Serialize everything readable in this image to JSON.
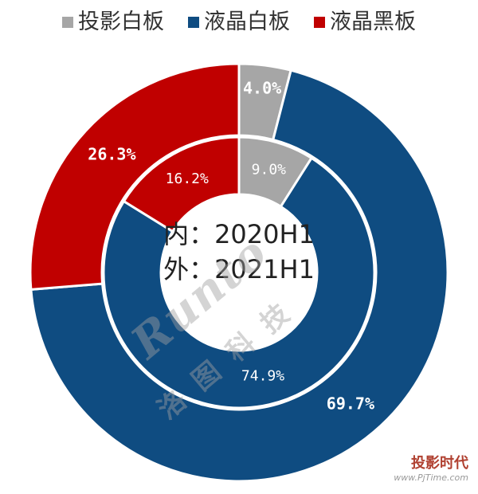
{
  "chart_data": [
    {
      "type": "pie",
      "ring": "inner",
      "categories": [
        "投影白板",
        "液晶白板",
        "液晶黑板"
      ],
      "values": [
        9.0,
        74.9,
        16.2
      ],
      "labels": [
        "9.0%",
        "74.9%",
        "16.2%"
      ]
    },
    {
      "type": "pie",
      "ring": "outer",
      "categories": [
        "投影白板",
        "液晶白板",
        "液晶黑板"
      ],
      "values": [
        4.0,
        69.7,
        26.3
      ],
      "labels": [
        "4.0%",
        "69.7%",
        "26.3%"
      ]
    }
  ],
  "legend": [
    {
      "label": "投影白板",
      "color": "#a6a6a6"
    },
    {
      "label": "液晶白板",
      "color": "#0f4c81"
    },
    {
      "label": "液晶黑板",
      "color": "#c00000"
    }
  ],
  "center": {
    "line1": "内：2020H1",
    "line2": "外：2021H1"
  },
  "watermark": {
    "main": "Runto",
    "sub": "洛图科技"
  },
  "corner_logo": {
    "name": "投影时代",
    "url": "www.PjTime.com"
  }
}
